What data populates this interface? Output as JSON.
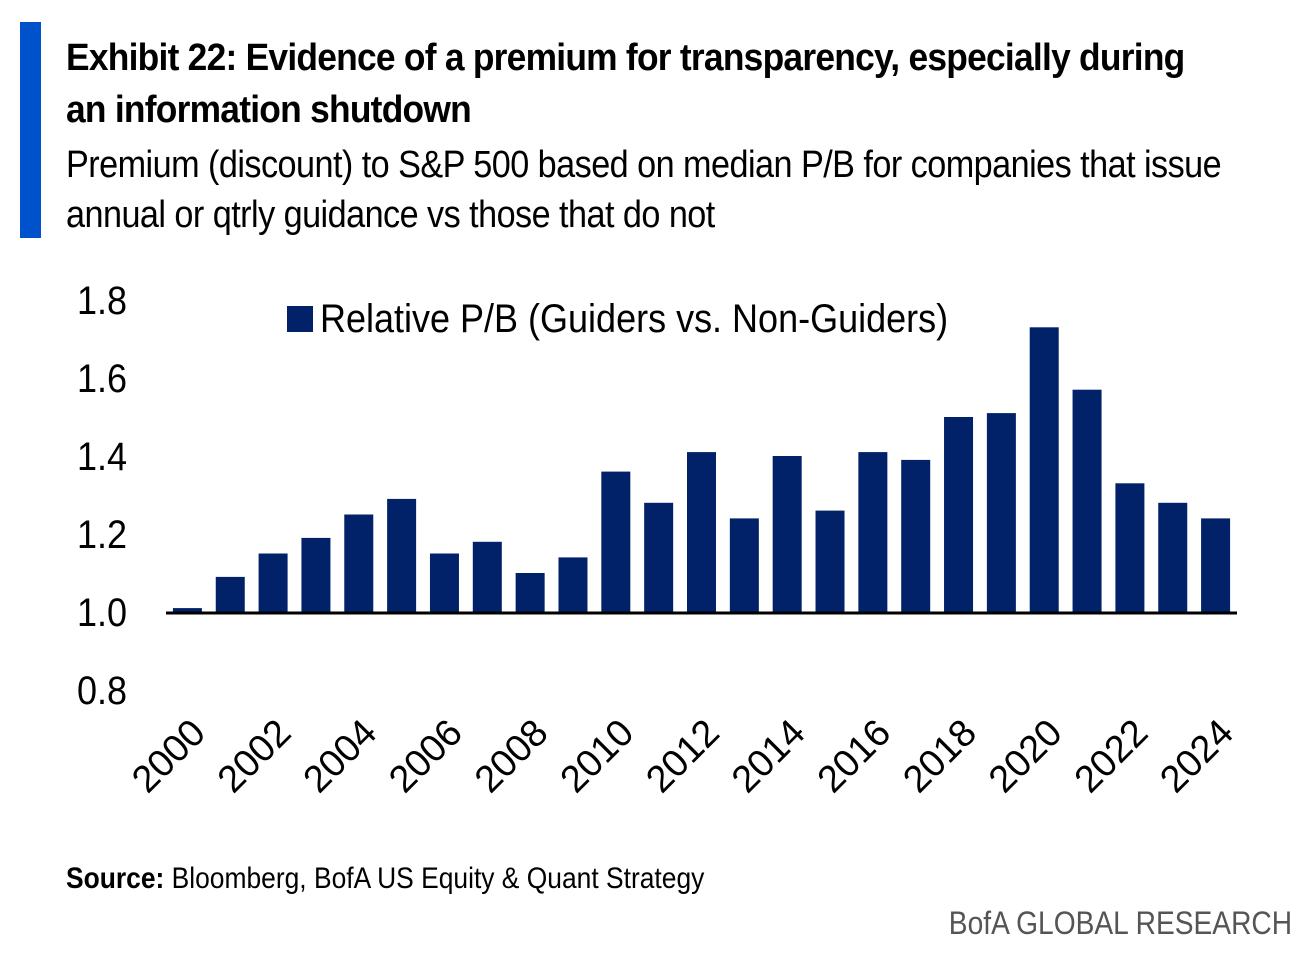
{
  "title": "Exhibit 22: Evidence of a premium for transparency, especially during an information shutdown",
  "subtitle": "Premium (discount) to S&P 500 based on median P/B for companies that issue annual or qtrly guidance vs those that do not",
  "source_label": "Source:",
  "source_text": "Bloomberg, BofA US Equity & Quant Strategy",
  "brand": "BofA GLOBAL RESEARCH",
  "colors": {
    "bar": "#012169",
    "accent": "#0052cc"
  },
  "chart_data": {
    "type": "bar",
    "title": "",
    "xlabel": "",
    "ylabel": "",
    "ylim": [
      0.8,
      1.8
    ],
    "yticks": [
      "0.8",
      "1.0",
      "1.2",
      "1.4",
      "1.6",
      "1.8"
    ],
    "baseline": 1.0,
    "grid": false,
    "legend": {
      "position": "top-center",
      "entries": [
        "Relative P/B (Guiders vs. Non-Guiders)"
      ]
    },
    "categories": [
      "2000",
      "2001",
      "2002",
      "2003",
      "2004",
      "2005",
      "2006",
      "2007",
      "2008",
      "2009",
      "2010",
      "2011",
      "2012",
      "2013",
      "2014",
      "2015",
      "2016",
      "2017",
      "2018",
      "2019",
      "2020",
      "2021",
      "2022",
      "2023",
      "2024"
    ],
    "xtick_labels": [
      "2000",
      "2002",
      "2004",
      "2006",
      "2008",
      "2010",
      "2012",
      "2014",
      "2016",
      "2018",
      "2020",
      "2022",
      "2024"
    ],
    "series": [
      {
        "name": "Relative P/B (Guiders vs. Non-Guiders)",
        "values": [
          1.01,
          1.09,
          1.15,
          1.19,
          1.25,
          1.29,
          1.15,
          1.18,
          1.1,
          1.14,
          1.36,
          1.28,
          1.41,
          1.24,
          1.4,
          1.26,
          1.41,
          1.39,
          1.5,
          1.51,
          1.73,
          1.57,
          1.33,
          1.28,
          1.24
        ]
      }
    ]
  }
}
